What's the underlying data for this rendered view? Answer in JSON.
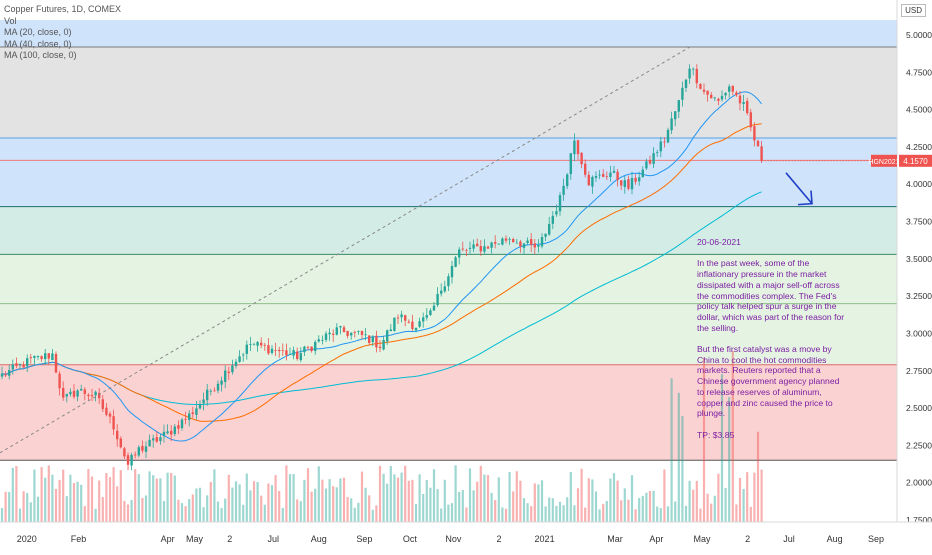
{
  "legend": {
    "symbol_line": "Copper Futures, 1D, COMEX",
    "vol_label": "Vol",
    "ma20_label": "MA (20, close, 0)",
    "ma40_label": "MA (40, close, 0)",
    "ma100_label": "MA (100, close, 0)"
  },
  "currency_label": "USD",
  "price_tag": {
    "symbol": "HGN2021",
    "value": "4.1570"
  },
  "annotation": {
    "date": "20-06-2021",
    "para1": "In the past week, some of the inflationary pressure in the market dissipated with a major sell-off across the commodities complex. The Fed's policy talk helped spur a surge in the dollar, which was part of the reason for the selling.",
    "para2": "But the first catalyst was a move by China to cool the hot commodities markets. Reuters reported that a Chinese government agency planned to release reserves of aluminum, copper and zinc caused the price to plunge.",
    "tp": "TP: $3.85"
  },
  "colors": {
    "up": "#26a69a",
    "down": "#ef5350",
    "ma20": "#2196f3",
    "ma40": "#ff6d00",
    "ma100": "#00bcd4",
    "zone_blue": "#cfe3fb",
    "zone_gray": "#e3e3e3",
    "zone_teal": "#d4ece6",
    "zone_green": "#e4f3e2",
    "zone_red": "#fbd2d2",
    "arrow": "#1e40c8",
    "note_text": "#7b1fa2"
  },
  "chart_data": {
    "type": "candlestick",
    "x_tick_labels": [
      "2020",
      "Feb",
      "Apr",
      "May",
      "2",
      "Jul",
      "Aug",
      "Sep",
      "Oct",
      "Nov",
      "2",
      "2021",
      "Mar",
      "Apr",
      "May",
      "2",
      "Jul",
      "Aug",
      "Sep"
    ],
    "y_tick_labels": [
      "5.0000",
      "4.7500",
      "4.5000",
      "4.2500",
      "4.0000",
      "3.7500",
      "3.5000",
      "3.2500",
      "3.0000",
      "2.7500",
      "2.5000",
      "2.2500",
      "2.0000",
      "1.7500"
    ],
    "ylim": [
      1.7,
      5.1
    ],
    "levels": [
      4.92,
      4.31,
      4.16,
      3.85,
      3.53,
      3.2,
      2.79,
      2.15
    ],
    "zones": [
      {
        "from": 4.92,
        "to": 5.1,
        "color": "blue"
      },
      {
        "from": 4.31,
        "to": 4.92,
        "color": "gray"
      },
      {
        "from": 3.85,
        "to": 4.31,
        "color": "blue"
      },
      {
        "from": 3.53,
        "to": 3.85,
        "color": "teal"
      },
      {
        "from": 2.79,
        "to": 3.53,
        "color": "green"
      },
      {
        "from": 2.15,
        "to": 2.79,
        "color": "red"
      }
    ],
    "last_price": 4.157,
    "projection_target": 3.85,
    "close_path": [
      {
        "t": 0,
        "v": 2.72
      },
      {
        "t": 8,
        "v": 2.82
      },
      {
        "t": 14,
        "v": 2.86
      },
      {
        "t": 17,
        "v": 2.55
      },
      {
        "t": 21,
        "v": 2.62
      },
      {
        "t": 26,
        "v": 2.58
      },
      {
        "t": 31,
        "v": 2.38
      },
      {
        "t": 35,
        "v": 2.12
      },
      {
        "t": 38,
        "v": 2.22
      },
      {
        "t": 46,
        "v": 2.33
      },
      {
        "t": 52,
        "v": 2.45
      },
      {
        "t": 58,
        "v": 2.62
      },
      {
        "t": 64,
        "v": 2.8
      },
      {
        "t": 69,
        "v": 2.93
      },
      {
        "t": 74,
        "v": 2.9
      },
      {
        "t": 82,
        "v": 2.85
      },
      {
        "t": 88,
        "v": 2.95
      },
      {
        "t": 93,
        "v": 3.02
      },
      {
        "t": 101,
        "v": 2.98
      },
      {
        "t": 105,
        "v": 2.92
      },
      {
        "t": 110,
        "v": 3.12
      },
      {
        "t": 115,
        "v": 3.05
      },
      {
        "t": 119,
        "v": 3.12
      },
      {
        "t": 122,
        "v": 3.3
      },
      {
        "t": 127,
        "v": 3.55
      },
      {
        "t": 134,
        "v": 3.58
      },
      {
        "t": 141,
        "v": 3.64
      },
      {
        "t": 147,
        "v": 3.58
      },
      {
        "t": 149,
        "v": 3.57
      },
      {
        "t": 155,
        "v": 3.9
      },
      {
        "t": 159,
        "v": 4.3
      },
      {
        "t": 163,
        "v": 4.02
      },
      {
        "t": 169,
        "v": 4.08
      },
      {
        "t": 174,
        "v": 3.98
      },
      {
        "t": 179,
        "v": 4.12
      },
      {
        "t": 184,
        "v": 4.3
      },
      {
        "t": 188,
        "v": 4.55
      },
      {
        "t": 191,
        "v": 4.8
      },
      {
        "t": 195,
        "v": 4.62
      },
      {
        "t": 199,
        "v": 4.55
      },
      {
        "t": 202,
        "v": 4.66
      },
      {
        "t": 206,
        "v": 4.52
      },
      {
        "t": 209,
        "v": 4.3
      },
      {
        "t": 211,
        "v": 4.157
      }
    ]
  }
}
